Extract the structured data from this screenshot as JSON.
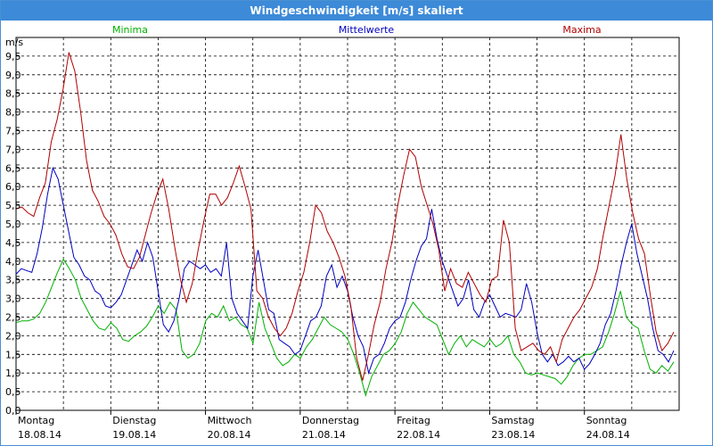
{
  "window": {
    "title": "Windgeschwindigkeit [m/s] skaliert"
  },
  "chart_data": {
    "type": "line",
    "title": "Windgeschwindigkeit [m/s] skaliert",
    "ylabel": "m/s",
    "ylim": [
      0,
      10
    ],
    "xlim": [
      0,
      7
    ],
    "yticks": [
      "0,0",
      "0,5",
      "1,0",
      "1,5",
      "2,0",
      "2,5",
      "3,0",
      "3,5",
      "4,0",
      "4,5",
      "5,0",
      "5,5",
      "6,0",
      "6,5",
      "7,0",
      "7,5",
      "8,0",
      "8,5",
      "9,0",
      "9,5"
    ],
    "days": [
      {
        "day": "Montag",
        "date": "18.08.14"
      },
      {
        "day": "Dienstag",
        "date": "19.08.14"
      },
      {
        "day": "Mittwoch",
        "date": "20.08.14"
      },
      {
        "day": "Donnerstag",
        "date": "21.08.14"
      },
      {
        "day": "Freitag",
        "date": "22.08.14"
      },
      {
        "day": "Samstag",
        "date": "23.08.14"
      },
      {
        "day": "Sonntag",
        "date": "24.08.14"
      }
    ],
    "grid": true,
    "legend": "top",
    "series": [
      {
        "name": "Minima",
        "color": "#00b000",
        "values": [
          2.35,
          2.4,
          2.4,
          2.45,
          2.6,
          2.9,
          3.3,
          3.7,
          4.05,
          3.8,
          3.5,
          3.0,
          2.7,
          2.4,
          2.2,
          2.15,
          2.35,
          2.2,
          1.9,
          1.85,
          2.0,
          2.1,
          2.25,
          2.5,
          2.8,
          2.6,
          2.9,
          2.7,
          1.6,
          1.4,
          1.5,
          1.8,
          2.4,
          2.6,
          2.5,
          2.8,
          2.4,
          2.5,
          2.3,
          2.2,
          1.8,
          2.9,
          2.2,
          1.8,
          1.4,
          1.2,
          1.3,
          1.5,
          1.4,
          1.7,
          1.9,
          2.2,
          2.5,
          2.3,
          2.2,
          2.1,
          1.9,
          1.5,
          1.0,
          0.4,
          0.9,
          1.2,
          1.5,
          1.6,
          1.8,
          2.1,
          2.6,
          2.9,
          2.7,
          2.5,
          2.4,
          2.3,
          1.9,
          1.5,
          1.8,
          2.0,
          1.7,
          1.9,
          1.8,
          1.7,
          1.9,
          1.7,
          1.8,
          2.0,
          1.5,
          1.3,
          1.0,
          0.95,
          1.0,
          0.95,
          0.9,
          0.85,
          0.7,
          0.9,
          1.2,
          1.4,
          1.5,
          1.5,
          1.6,
          1.7,
          2.1,
          2.6,
          3.2,
          2.5,
          2.3,
          2.2,
          1.6,
          1.1,
          1.0,
          1.2,
          1.05,
          1.3
        ]
      },
      {
        "name": "Mittelwerte",
        "color": "#0000c0",
        "values": [
          3.65,
          3.8,
          3.75,
          3.7,
          4.2,
          4.9,
          5.8,
          6.5,
          6.2,
          5.5,
          4.8,
          4.1,
          3.9,
          3.6,
          3.5,
          3.2,
          3.1,
          2.8,
          2.75,
          2.9,
          3.1,
          3.5,
          3.9,
          4.3,
          4.0,
          4.5,
          4.1,
          3.2,
          2.3,
          2.1,
          2.4,
          3.0,
          3.8,
          4.0,
          3.9,
          3.8,
          3.9,
          3.7,
          3.8,
          3.6,
          4.5,
          3.0,
          2.6,
          2.4,
          2.2,
          3.6,
          4.3,
          3.5,
          2.7,
          2.6,
          1.9,
          1.8,
          1.7,
          1.5,
          1.6,
          2.0,
          2.4,
          2.5,
          2.8,
          3.6,
          3.9,
          3.3,
          3.6,
          3.2,
          2.5,
          2.0,
          1.7,
          1.0,
          1.4,
          1.5,
          1.8,
          2.2,
          2.4,
          2.5,
          2.9,
          3.5,
          4.0,
          4.4,
          4.6,
          5.4,
          4.6,
          4.0,
          3.6,
          3.2,
          2.8,
          3.0,
          3.5,
          2.7,
          2.5,
          2.9,
          3.1,
          2.8,
          2.5,
          2.6,
          2.55,
          2.5,
          2.7,
          3.4,
          2.9,
          2.1,
          1.5,
          1.3,
          1.5,
          1.2,
          1.3,
          1.45,
          1.3,
          1.4,
          1.1,
          1.25,
          1.5,
          1.8,
          2.3,
          2.6,
          3.2,
          3.9,
          4.5,
          5.0,
          4.2,
          3.6,
          3.0,
          2.2,
          1.6,
          1.5,
          1.3,
          1.6
        ]
      },
      {
        "name": "Maxima",
        "color": "#b00000",
        "values": [
          5.4,
          5.45,
          5.3,
          5.2,
          5.7,
          6.1,
          7.2,
          7.8,
          8.6,
          9.6,
          9.1,
          8.0,
          6.7,
          5.9,
          5.6,
          5.2,
          5.0,
          4.7,
          4.2,
          3.85,
          3.8,
          4.1,
          4.7,
          5.3,
          5.8,
          6.2,
          5.4,
          4.4,
          3.5,
          2.9,
          3.4,
          4.3,
          5.1,
          5.8,
          5.8,
          5.5,
          5.7,
          6.1,
          6.55,
          6.0,
          5.4,
          3.2,
          3.0,
          2.5,
          2.2,
          2.0,
          2.2,
          2.6,
          3.2,
          3.7,
          4.5,
          5.5,
          5.3,
          4.8,
          4.5,
          4.1,
          3.6,
          2.8,
          1.4,
          0.8,
          1.5,
          2.3,
          2.9,
          3.8,
          4.5,
          5.5,
          6.3,
          7.0,
          6.8,
          6.0,
          5.5,
          5.0,
          4.3,
          3.2,
          3.8,
          3.4,
          3.3,
          3.7,
          3.4,
          3.1,
          2.9,
          3.5,
          3.6,
          5.1,
          4.5,
          2.2,
          1.6,
          1.7,
          1.8,
          1.6,
          1.5,
          1.7,
          1.3,
          1.9,
          2.2,
          2.5,
          2.7,
          3.0,
          3.3,
          3.8,
          4.7,
          5.5,
          6.3,
          7.4,
          6.2,
          5.3,
          4.6,
          4.2,
          3.1,
          2.1,
          1.6,
          1.8,
          2.1
        ]
      }
    ]
  }
}
